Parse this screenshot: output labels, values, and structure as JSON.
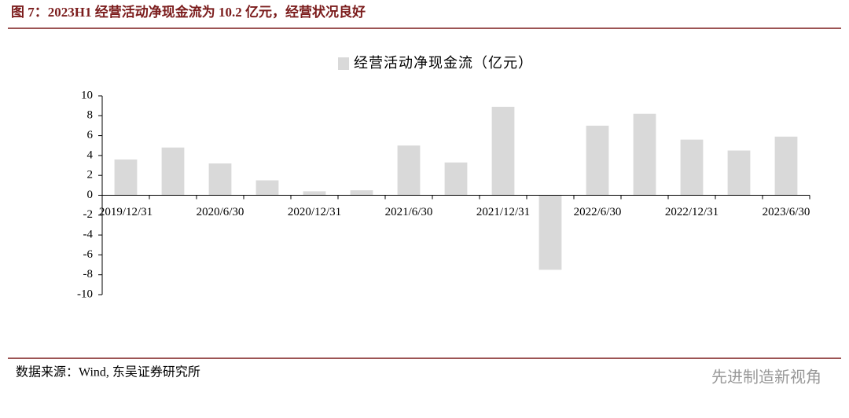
{
  "header": {
    "title": "图 7：2023H1 经营活动净现金流为 10.2 亿元，经营状况良好"
  },
  "chart_data": {
    "type": "bar",
    "series": [
      {
        "name": "经营活动净现金流（亿元）",
        "color": "#d9d9d9",
        "values": [
          3.6,
          4.8,
          3.2,
          1.5,
          0.4,
          0.5,
          5.0,
          3.3,
          8.9,
          -7.5,
          7.0,
          8.2,
          5.6,
          4.5,
          5.9
        ]
      }
    ],
    "categories": [
      "2019/12/31",
      null,
      "2020/6/30",
      null,
      "2020/12/31",
      null,
      "2021/6/30",
      null,
      "2021/12/31",
      null,
      "2022/6/30",
      null,
      "2022/12/31",
      null,
      "2023/6/30"
    ],
    "ylim": [
      -10,
      10
    ],
    "yticks": [
      -10,
      -8,
      -6,
      -4,
      -2,
      0,
      2,
      4,
      6,
      8,
      10
    ],
    "legend": "top"
  },
  "footer": {
    "source": "数据来源：Wind, 东吴证券研究所",
    "watermark": "先进制造新视角"
  }
}
